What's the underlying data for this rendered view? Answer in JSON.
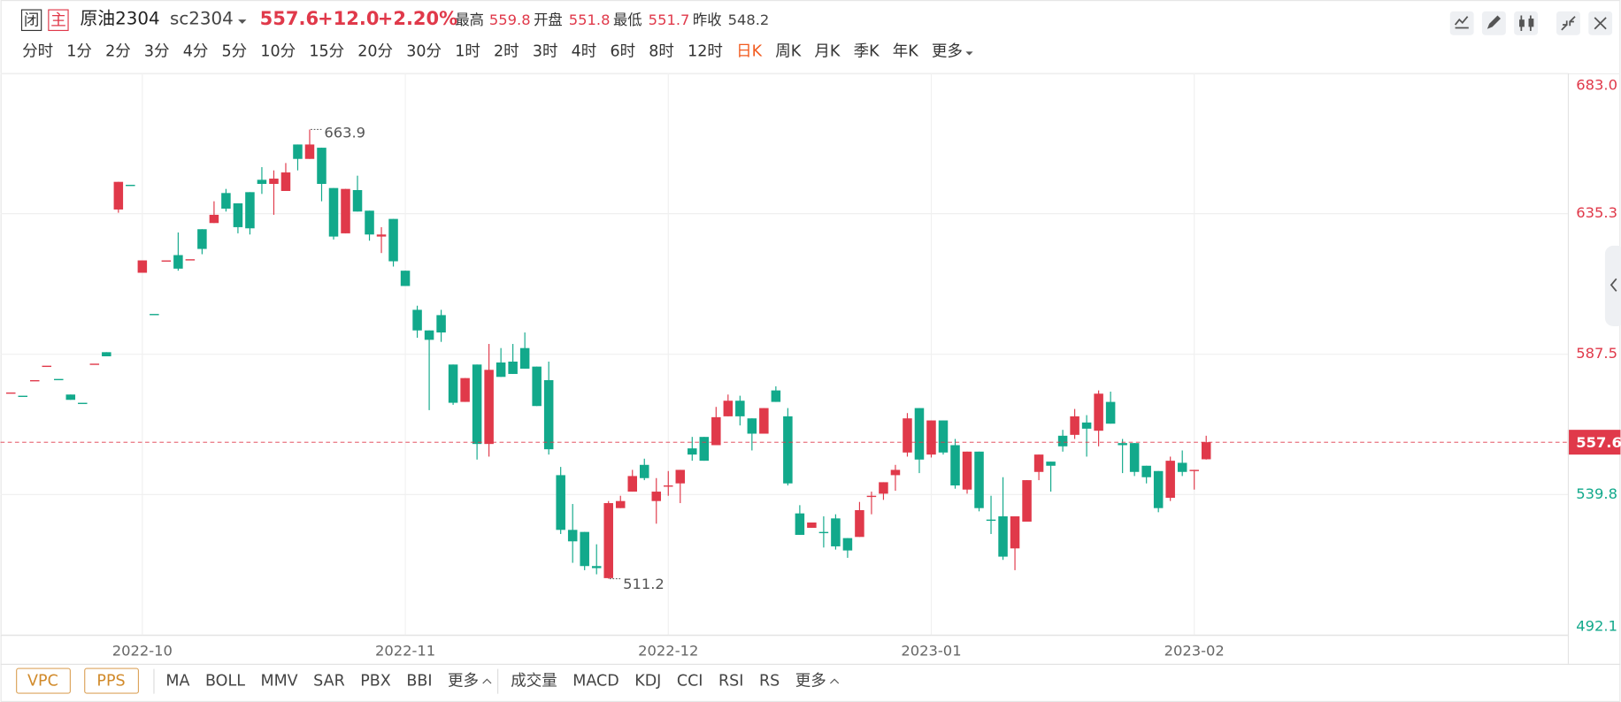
{
  "header": {
    "badges": [
      "闭",
      "主"
    ],
    "name": "原油2304",
    "code": "sc2304",
    "change": "+12.0",
    "change_pct": "+2.20%",
    "stat_labels": [
      "最高",
      "开盘",
      "最低",
      "昨收"
    ]
  },
  "periods": {
    "items": [
      "分时",
      "1分",
      "2分",
      "3分",
      "4分",
      "5分",
      "10分",
      "15分",
      "20分",
      "30分",
      "1时",
      "2时",
      "3时",
      "4时",
      "6时",
      "8时",
      "12时",
      "日K",
      "周K",
      "月K",
      "季K",
      "年K",
      "更多"
    ],
    "active": 17
  },
  "indicators": {
    "boxed": [
      "VPC",
      "PPS"
    ],
    "main": [
      "MA",
      "BOLL",
      "MMV",
      "SAR",
      "PBX",
      "BBI",
      "更多"
    ],
    "sub": [
      "成交量",
      "MACD",
      "KDJ",
      "CCI",
      "RSI",
      "RS",
      "更多"
    ]
  },
  "chart_data": {
    "type": "candlestick",
    "up_color": "#e0394a",
    "down_color": "#12a98b",
    "grid": true,
    "categories": [
      null,
      null,
      null,
      null,
      null,
      null,
      null,
      null,
      null,
      null,
      null,
      "2022-10",
      null,
      null,
      null,
      null,
      null,
      null,
      null,
      null,
      null,
      null,
      null,
      null,
      null,
      null,
      null,
      null,
      null,
      null,
      null,
      null,
      null,
      "2022-11",
      null,
      null,
      null,
      null,
      null,
      null,
      null,
      null,
      null,
      null,
      null,
      null,
      null,
      null,
      null,
      null,
      null,
      null,
      null,
      null,
      null,
      "2022-12",
      null,
      null,
      null,
      null,
      null,
      null,
      null,
      null,
      null,
      null,
      null,
      null,
      null,
      null,
      null,
      null,
      null,
      null,
      null,
      null,
      null,
      "2023-01",
      null,
      null,
      null,
      null,
      null,
      null,
      null,
      null,
      null,
      null,
      null,
      null,
      null,
      null,
      null,
      null,
      null,
      null,
      null,
      null,
      null,
      "2023-02",
      null
    ],
    "open": [
      574.5,
      573.4,
      578.7,
      583.6,
      579.1,
      573.8,
      571.0,
      584.3,
      588.2,
      636.7,
      645.1,
      615.2,
      601.2,
      619.4,
      621.2,
      619.8,
      630.0,
      632.1,
      642.3,
      638.8,
      642.6,
      646.8,
      645.4,
      643.0,
      658.8,
      653.9,
      657.7,
      644.0,
      628.6,
      643.3,
      636.3,
      627.5,
      633.5,
      615.9,
      602.6,
      595.6,
      600.8,
      584.0,
      571.3,
      584.0,
      557.0,
      584.7,
      585.0,
      589.6,
      583.3,
      578.7,
      546.4,
      527.8,
      527.1,
      515.5,
      511.4,
      535.2,
      540.8,
      549.9,
      537.6,
      542.9,
      543.6,
      555.5,
      559.4,
      556.6,
      566.4,
      571.7,
      565.7,
      560.5,
      575.2,
      566.4,
      533.4,
      528.5,
      527.1,
      531.7,
      525.0,
      525.4,
      539.4,
      540.1,
      546.4,
      554.1,
      569.2,
      553.4,
      565.0,
      556.6,
      541.5,
      554.4,
      531.3,
      532.4,
      521.5,
      530.6,
      547.5,
      551.0,
      559.8,
      560.1,
      564.3,
      561.5,
      571.3,
      557.3,
      557.3,
      549.6,
      547.8,
      538.7,
      550.6,
      548.2,
      551.8
    ],
    "high": [
      574.5,
      573.4,
      578.7,
      583.6,
      579.1,
      573.8,
      571.0,
      584.3,
      588.2,
      646.1,
      645.1,
      619.4,
      601.2,
      619.4,
      628.9,
      619.8,
      630.0,
      639.5,
      643.7,
      638.8,
      642.6,
      651.1,
      650.0,
      652.5,
      658.8,
      663.9,
      657.7,
      644.0,
      643.7,
      648.2,
      636.3,
      630.7,
      633.5,
      615.9,
      604.0,
      595.6,
      602.6,
      584.0,
      579.4,
      584.0,
      591.0,
      589.6,
      591.0,
      594.9,
      583.3,
      585.0,
      549.2,
      536.6,
      527.1,
      522.9,
      537.6,
      539.4,
      548.2,
      552.0,
      545.4,
      547.8,
      548.2,
      559.4,
      559.4,
      569.6,
      573.8,
      573.4,
      565.7,
      569.2,
      576.6,
      569.2,
      536.2,
      530.3,
      532.4,
      533.1,
      525.0,
      537.3,
      540.8,
      544.0,
      549.9,
      567.5,
      569.2,
      565.0,
      565.0,
      558.7,
      554.4,
      554.4,
      539.4,
      545.7,
      532.4,
      544.7,
      553.4,
      551.0,
      561.8,
      568.9,
      566.8,
      575.2,
      574.8,
      558.7,
      557.3,
      549.6,
      547.8,
      552.7,
      554.8,
      548.2,
      559.8
    ],
    "low": [
      574.5,
      573.4,
      578.7,
      583.6,
      579.1,
      572.0,
      571.0,
      584.3,
      586.8,
      635.6,
      645.1,
      615.2,
      601.2,
      619.4,
      615.9,
      619.8,
      621.5,
      632.1,
      636.0,
      628.6,
      628.2,
      642.0,
      634.9,
      643.0,
      650.0,
      653.9,
      639.5,
      626.5,
      628.6,
      636.0,
      626.1,
      621.9,
      617.3,
      610.7,
      593.1,
      568.5,
      591.7,
      570.3,
      571.3,
      551.7,
      552.7,
      579.8,
      580.8,
      582.6,
      569.9,
      553.4,
      526.4,
      516.6,
      514.1,
      512.7,
      511.2,
      535.2,
      540.8,
      544.7,
      529.9,
      539.4,
      536.9,
      551.3,
      551.3,
      556.6,
      566.4,
      563.3,
      554.8,
      560.5,
      571.3,
      542.9,
      526.1,
      528.5,
      521.8,
      521.1,
      518.3,
      525.4,
      533.1,
      538.0,
      541.1,
      552.7,
      547.1,
      552.4,
      553.4,
      541.8,
      540.1,
      534.1,
      526.4,
      517.6,
      514.1,
      530.6,
      544.7,
      540.8,
      554.4,
      558.7,
      552.7,
      556.2,
      563.9,
      547.1,
      546.1,
      543.6,
      533.8,
      537.6,
      546.1,
      541.5,
      551.7
    ],
    "close": [
      574.5,
      573.4,
      578.7,
      583.6,
      579.1,
      572.0,
      571.0,
      584.3,
      586.8,
      646.1,
      645.1,
      619.4,
      601.2,
      619.4,
      616.6,
      619.8,
      623.3,
      634.9,
      637.0,
      630.7,
      630.3,
      645.4,
      647.2,
      649.3,
      653.9,
      658.8,
      645.4,
      627.5,
      643.7,
      636.0,
      628.2,
      628.2,
      619.1,
      610.7,
      595.6,
      592.4,
      594.9,
      571.0,
      579.4,
      557.0,
      582.2,
      579.8,
      580.8,
      582.6,
      569.9,
      555.2,
      527.8,
      523.9,
      515.5,
      514.8,
      536.9,
      537.6,
      546.1,
      545.4,
      540.8,
      542.9,
      548.2,
      553.4,
      551.3,
      566.1,
      571.7,
      566.4,
      560.5,
      569.2,
      571.3,
      543.6,
      526.1,
      530.3,
      527.1,
      522.2,
      520.8,
      534.5,
      539.4,
      544.0,
      548.2,
      565.7,
      551.7,
      565.0,
      554.1,
      542.9,
      554.4,
      535.2,
      531.3,
      518.7,
      532.4,
      544.7,
      553.4,
      549.6,
      556.2,
      566.4,
      562.2,
      574.1,
      563.9,
      556.6,
      547.5,
      545.7,
      535.2,
      551.3,
      547.5,
      548.2,
      557.6
    ],
    "ylim": [
      492.1,
      683.0
    ],
    "yticks": [
      {
        "value": 683.0,
        "label": "683.0"
      },
      635.3,
      587.5,
      539.8,
      492.1
    ]
  }
}
